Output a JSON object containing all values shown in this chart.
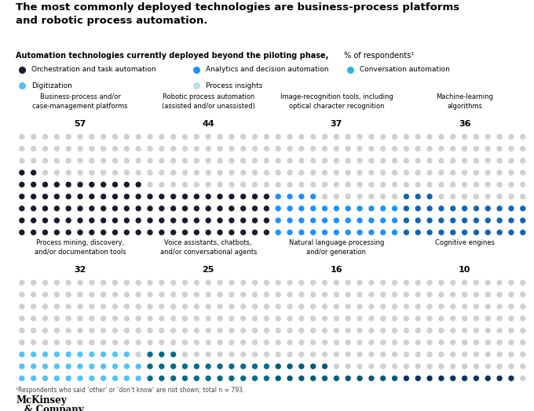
{
  "title": "The most commonly deployed technologies are business-process platforms\nand robotic process automation.",
  "subtitle_bold": "Automation technologies currently deployed beyond the piloting phase,",
  "subtitle_normal": " % of respondents¹",
  "legend_items": [
    {
      "label": "Orchestration and task automation",
      "color": "#1a1a2e"
    },
    {
      "label": "Analytics and decision automation",
      "color": "#1E90FF"
    },
    {
      "label": "Conversation automation",
      "color": "#29B6D8"
    },
    {
      "label": "Digitization",
      "color": "#4FC3F7"
    },
    {
      "label": "Process insights",
      "color": "#B8DFE8"
    }
  ],
  "charts": [
    {
      "title": "Business-process and/or\ncase-management platforms",
      "value": 57,
      "color": "#1a1a2e",
      "row": 0,
      "col": 0
    },
    {
      "title": "Robotic process automation\n(assisted and/or unassisted)",
      "value": 44,
      "color": "#1a1a2e",
      "row": 0,
      "col": 1
    },
    {
      "title": "Image-recognition tools, including\noptical character recognition",
      "value": 37,
      "color": "#1E90FF",
      "row": 0,
      "col": 2
    },
    {
      "title": "Machine-learning\nalgorithms",
      "value": 36,
      "color": "#1464B4",
      "row": 0,
      "col": 3
    },
    {
      "title": "Process mining, discovery,\nand/or documentation tools",
      "value": 32,
      "color": "#4FC3F7",
      "row": 1,
      "col": 0
    },
    {
      "title": "Voice assistants, chatbots,\nand/or conversational agents",
      "value": 25,
      "color": "#006B8A",
      "row": 1,
      "col": 1
    },
    {
      "title": "Natural language processing\nand/or generation",
      "value": 16,
      "color": "#005A7A",
      "row": 1,
      "col": 2
    },
    {
      "title": "Cognitive engines",
      "value": 10,
      "color": "#003366",
      "row": 1,
      "col": 3
    }
  ],
  "footnote": "¹Respondents who said ‘other’ or ‘don’t know’ are not shown; total n = 793.",
  "bg_color": "#ffffff",
  "dot_bg_color": "#d0d0d0",
  "dot_cols": 11,
  "dot_rows": 9,
  "dot_size": 28
}
